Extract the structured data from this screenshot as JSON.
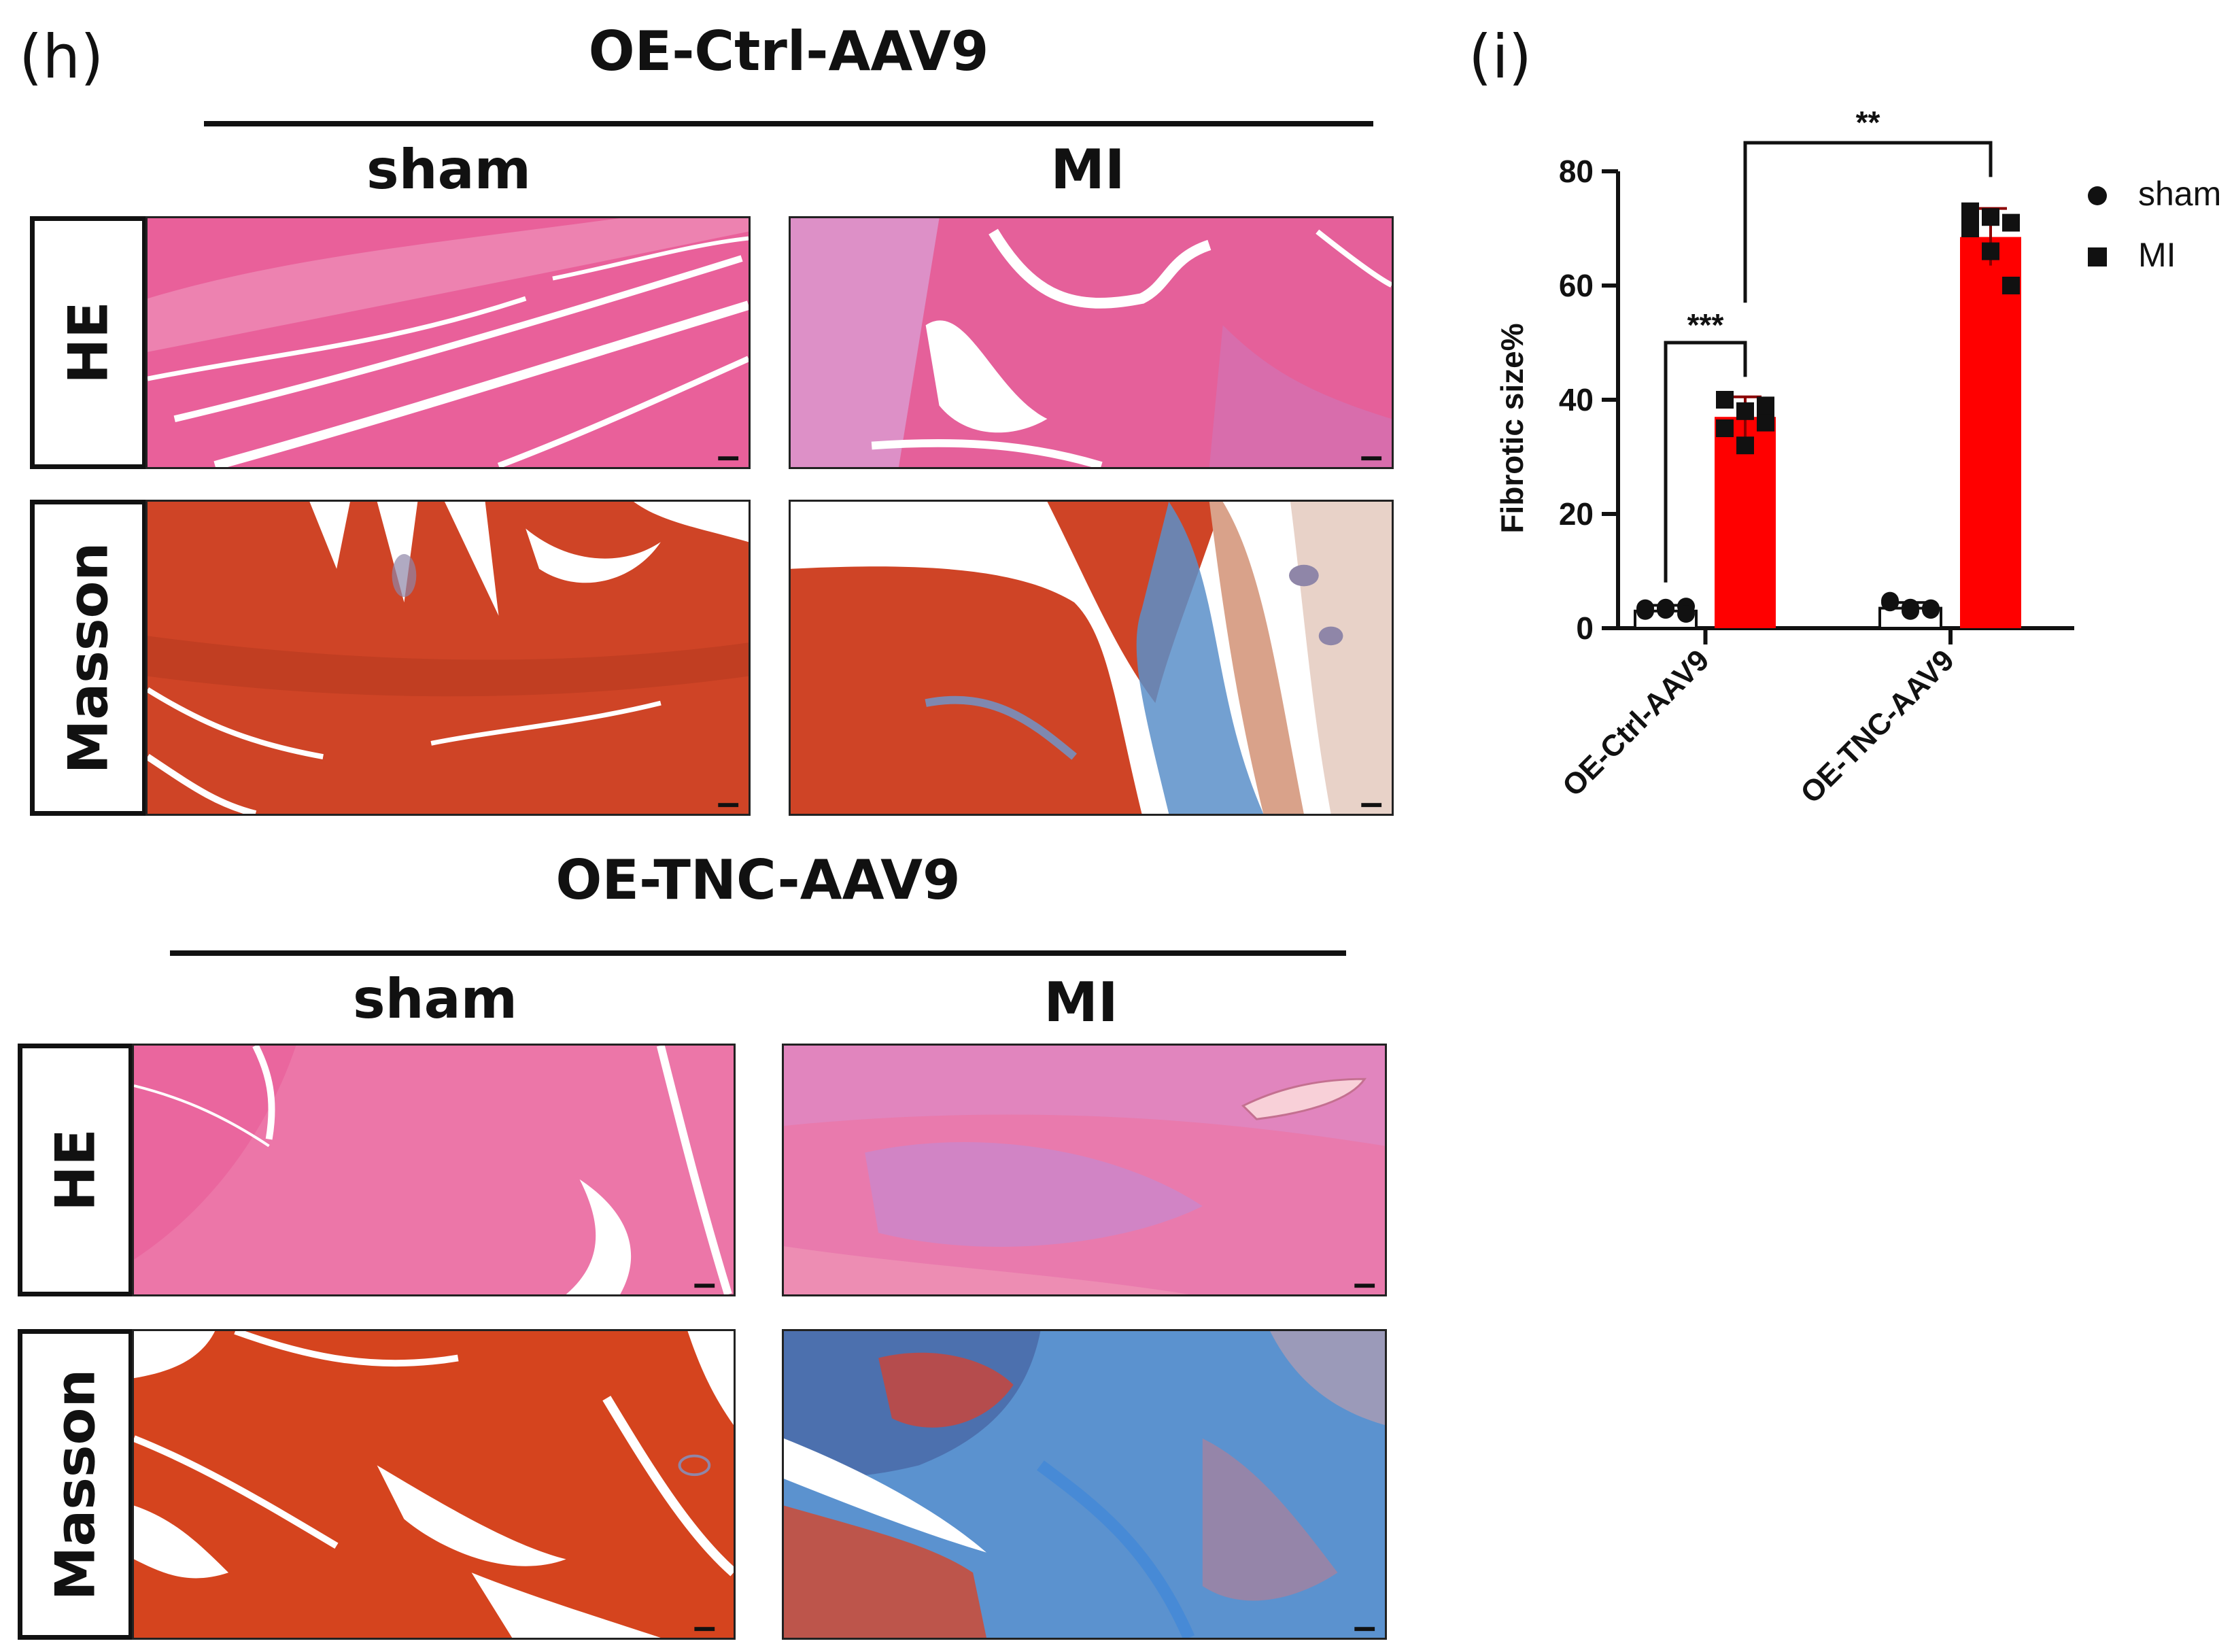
{
  "panel_h": {
    "label": "(h)",
    "groups": [
      {
        "title": "OE-Ctrl-AAV9",
        "columns": [
          "sham",
          "MI"
        ],
        "rows": [
          "HE",
          "Masson"
        ]
      },
      {
        "title": "OE-TNC-AAV9",
        "columns": [
          "sham",
          "MI"
        ],
        "rows": [
          "HE",
          "Masson"
        ]
      }
    ]
  },
  "panel_i": {
    "label": "(i)"
  },
  "colors": {
    "sham_bar": "#ffffff",
    "mi_bar": "#ff0000",
    "he_pink": "#e9609a",
    "masson_red": "#cf4426",
    "masson_blue": "#4a8fd0"
  },
  "chart_data": {
    "type": "bar",
    "categories": [
      "OE-Ctrl-AAV9",
      "OE-TNC-AAV9"
    ],
    "ylabel": "Fibrotic size%",
    "xlabel": "",
    "ylim": [
      0,
      80
    ],
    "yticks": [
      0,
      20,
      40,
      60,
      80
    ],
    "legend_position": "top-right",
    "series": [
      {
        "name": "sham",
        "marker": "circle",
        "values": [
          3,
          3.5
        ],
        "error": [
          1,
          1
        ],
        "points": [
          [
            3.5,
            3.2,
            3.8,
            3.0,
            3.6,
            2.5
          ],
          [
            4.5,
            3.0,
            3.5,
            4.8,
            3.6,
            3.2
          ]
        ]
      },
      {
        "name": "MI",
        "marker": "square",
        "values": [
          37,
          68.5
        ],
        "error": [
          3.5,
          5
        ],
        "points": [
          [
            40,
            38,
            36,
            35,
            32,
            39
          ],
          [
            73,
            72,
            71,
            70,
            66,
            60
          ]
        ]
      }
    ],
    "significance": [
      {
        "label": "***",
        "from": "OE-Ctrl-AAV9 sham",
        "to": "OE-Ctrl-AAV9 MI"
      },
      {
        "label": "**",
        "from": "OE-Ctrl-AAV9 MI",
        "to": "OE-TNC-AAV9 MI"
      }
    ]
  }
}
